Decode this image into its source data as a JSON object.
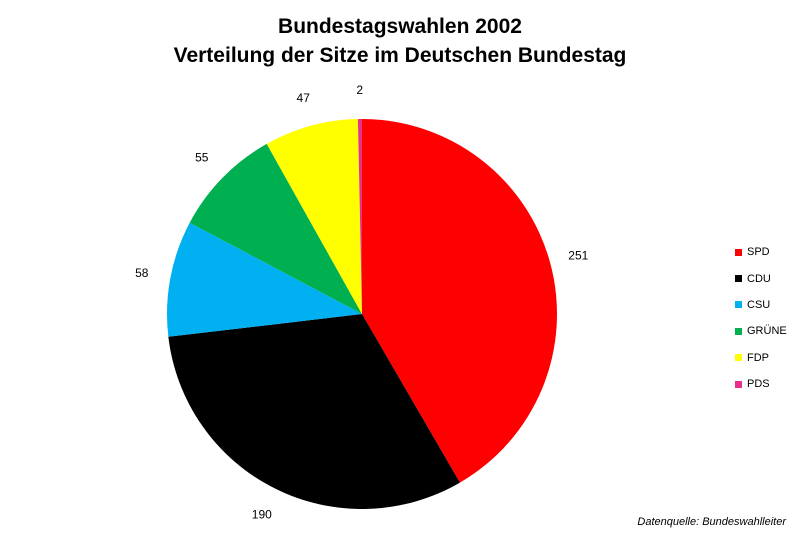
{
  "chart_data": {
    "type": "pie",
    "title": "Bundestagswahlen 2002",
    "subtitle": "Verteilung der Sitze im Deutschen Bundestag",
    "categories": [
      "SPD",
      "CDU",
      "CSU",
      "GRÜNE",
      "FDP",
      "PDS"
    ],
    "values": [
      251,
      190,
      58,
      55,
      47,
      2
    ],
    "colors": [
      "#ff0000",
      "#000000",
      "#00b0f0",
      "#00b050",
      "#ffff00",
      "#e6308a"
    ],
    "data_labels": [
      "251",
      "190",
      "58",
      "55",
      "47",
      "2"
    ],
    "legend": {
      "position": "right"
    },
    "source": "Datenquelle: Bundeswahlleiter"
  }
}
